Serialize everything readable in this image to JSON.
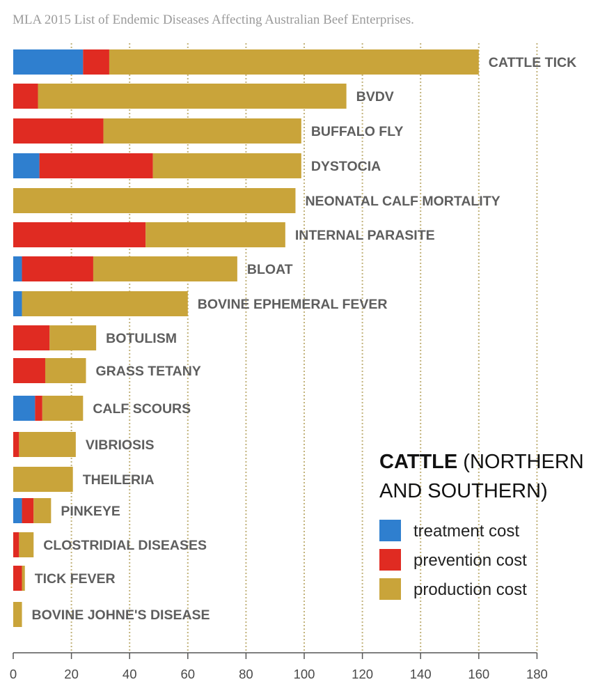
{
  "chart_data": {
    "type": "bar",
    "orientation": "horizontal",
    "stacked": true,
    "title": "MLA 2015 List of Endemic Diseases Affecting Australian Beef Enterprises.",
    "categories": [
      "CATTLE TICK",
      "BVDV",
      "BUFFALO FLY",
      "DYSTOCIA",
      "NEONATAL CALF MORTALITY",
      "INTERNAL PARASITE",
      "BLOAT",
      "BOVINE EPHEMERAL FEVER",
      "BOTULISM",
      "GRASS TETANY",
      "CALF SCOURS",
      "VIBRIOSIS",
      "THEILERIA",
      "PINKEYE",
      "CLOSTRIDIAL DISEASES",
      "TICK FEVER",
      "BOVINE JOHNE'S DISEASE"
    ],
    "series": [
      {
        "name": "treatment cost",
        "color": "#2f7fcf",
        "values": [
          24,
          0,
          0,
          9,
          0,
          0,
          3,
          3,
          0,
          0,
          7.5,
          0,
          0,
          3,
          0,
          0,
          0
        ]
      },
      {
        "name": "prevention cost",
        "color": "#e02b22",
        "values": [
          9,
          8.5,
          31,
          39,
          0,
          45.5,
          24.5,
          0,
          12.5,
          11,
          2.5,
          2,
          0,
          4,
          2,
          3,
          0
        ]
      },
      {
        "name": "production cost",
        "color": "#c9a43a",
        "values": [
          127,
          106,
          68,
          51,
          97,
          48,
          49.5,
          57,
          16,
          14,
          14,
          19.5,
          20.5,
          6,
          5,
          1,
          3
        ]
      }
    ],
    "xlim": [
      0,
      180
    ],
    "xticks": [
      0,
      20,
      40,
      60,
      80,
      100,
      120,
      140,
      160,
      180
    ],
    "grid": true,
    "legend": {
      "title_bold": "CATTLE",
      "title_rest_line1": " (NORTHERN",
      "title_line2": "AND SOUTHERN)",
      "position": "bottom-right"
    }
  }
}
